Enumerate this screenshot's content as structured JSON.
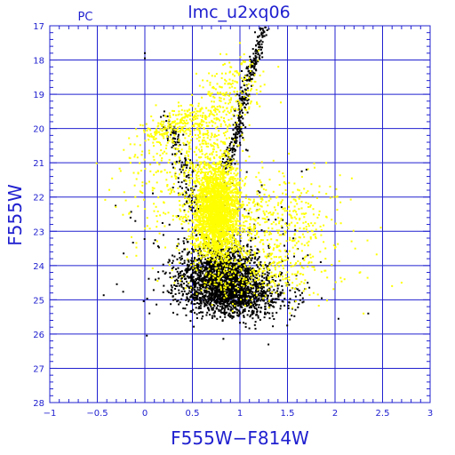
{
  "chart_data": {
    "type": "scatter",
    "title": "lmc_u2xq06",
    "corner_label": "PC",
    "xlabel": "F555W−F814W",
    "ylabel": "F555W",
    "xlim": [
      -1,
      3
    ],
    "ylim": [
      28,
      17
    ],
    "y_inverted": true,
    "grid": true,
    "x_ticks": [
      -1,
      -0.5,
      0,
      0.5,
      1,
      1.5,
      2,
      2.5,
      3
    ],
    "x_tick_labels": [
      "−1",
      "−0.5",
      "0",
      "0.5",
      "1",
      "1.5",
      "2",
      "2.5",
      "3"
    ],
    "y_ticks": [
      17,
      18,
      19,
      20,
      21,
      22,
      23,
      24,
      25,
      26,
      27,
      28
    ],
    "y_tick_labels": [
      "17",
      "18",
      "19",
      "20",
      "21",
      "22",
      "23",
      "24",
      "25",
      "26",
      "27",
      "28"
    ],
    "series": [
      {
        "color": "#000000",
        "structure": [
          {
            "component": "giant_branch",
            "path": [
              [
                1.25,
                17.05
              ],
              [
                1.18,
                17.8
              ],
              [
                1.1,
                18.5
              ],
              [
                1.02,
                19.3
              ],
              [
                0.98,
                20.0
              ],
              [
                0.92,
                20.6
              ],
              [
                0.85,
                21.2
              ]
            ],
            "spread": 0.03,
            "count": 340
          },
          {
            "component": "blue_loop",
            "path": [
              [
                0.2,
                19.6
              ],
              [
                0.3,
                20.2
              ],
              [
                0.4,
                21.0
              ],
              [
                0.45,
                21.8
              ],
              [
                0.55,
                22.5
              ]
            ],
            "spread": 0.05,
            "count": 140
          },
          {
            "component": "main_sequence_turnoff",
            "center": [
              0.8,
              24.3
            ],
            "sd": [
              0.22,
              0.45
            ],
            "count": 1500
          },
          {
            "component": "faint_main_sequence",
            "center": [
              0.95,
              24.9
            ],
            "sd": [
              0.3,
              0.3
            ],
            "count": 900
          },
          {
            "component": "scatter",
            "center": [
              0.9,
              23.5
            ],
            "sd": [
              0.45,
              1.1
            ],
            "count": 160
          }
        ],
        "sample_points": [
          [
            1.27,
            17.05
          ],
          [
            1.25,
            17.3
          ],
          [
            1.2,
            17.7
          ],
          [
            1.15,
            18.1
          ],
          [
            1.1,
            18.6
          ],
          [
            1.05,
            19.1
          ],
          [
            1.0,
            19.6
          ],
          [
            0.98,
            20.1
          ],
          [
            0.0,
            17.8
          ],
          [
            0.0,
            17.95
          ],
          [
            -0.15,
            22.6
          ],
          [
            -0.1,
            22.7
          ],
          [
            1.7,
            21.2
          ],
          [
            1.65,
            21.25
          ],
          [
            2.35,
            25.4
          ],
          [
            1.85,
            23.9
          ],
          [
            0.2,
            19.8
          ],
          [
            0.3,
            20.5
          ],
          [
            0.4,
            21.2
          ]
        ]
      },
      {
        "color": "#ffff00",
        "structure": [
          {
            "component": "main_sequence_core",
            "center": [
              0.75,
              22.4
            ],
            "sd": [
              0.12,
              0.7
            ],
            "count": 2600
          },
          {
            "component": "upper_main_sequence",
            "path": [
              [
                0.5,
                21.0
              ],
              [
                0.7,
                20.0
              ],
              [
                0.9,
                19.0
              ],
              [
                1.0,
                18.3
              ]
            ],
            "spread": 0.18,
            "count": 380
          },
          {
            "component": "blue_plume",
            "path": [
              [
                0.1,
                20.3
              ],
              [
                0.25,
                20.0
              ],
              [
                0.45,
                19.8
              ],
              [
                0.6,
                19.6
              ]
            ],
            "spread": 0.1,
            "count": 220
          },
          {
            "component": "red_scatter",
            "center": [
              1.35,
              22.8
            ],
            "sd": [
              0.35,
              0.8
            ],
            "count": 520
          },
          {
            "component": "blue_scatter",
            "center": [
              0.2,
              21.5
            ],
            "sd": [
              0.25,
              1.0
            ],
            "count": 200
          },
          {
            "component": "lower_fringe",
            "center": [
              1.2,
              24.3
            ],
            "sd": [
              0.4,
              0.4
            ],
            "count": 260
          }
        ],
        "sample_points": [
          [
            1.0,
            17.5
          ],
          [
            0.9,
            18.2
          ],
          [
            1.1,
            19.9
          ],
          [
            2.6,
            24.6
          ],
          [
            2.7,
            24.5
          ],
          [
            2.3,
            25.4
          ],
          [
            2.1,
            24.4
          ],
          [
            -0.15,
            21.0
          ],
          [
            -0.1,
            22.0
          ],
          [
            0.2,
            19.8
          ],
          [
            0.3,
            19.6
          ],
          [
            0.45,
            19.5
          ],
          [
            0.6,
            19.4
          ],
          [
            0.8,
            19.2
          ],
          [
            1.9,
            23.8
          ],
          [
            1.6,
            22.2
          ],
          [
            1.8,
            23.2
          ]
        ]
      }
    ]
  }
}
